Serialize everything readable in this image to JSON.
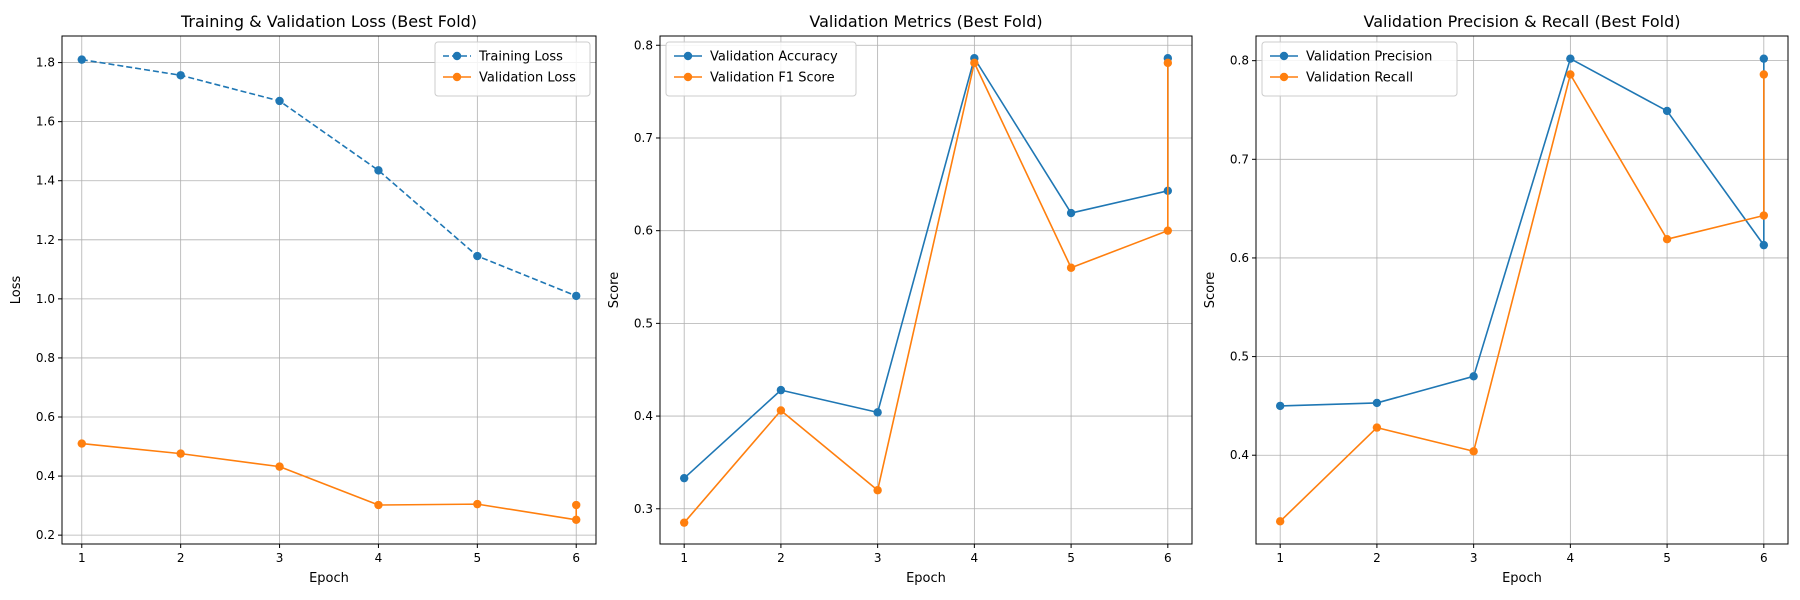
{
  "chart_data": [
    {
      "type": "line",
      "title": "Training & Validation Loss (Best Fold)",
      "xlabel": "Epoch",
      "ylabel": "Loss",
      "xlim": [
        0.8,
        6.2
      ],
      "ylim": [
        0.17,
        1.89
      ],
      "xticks": [
        1,
        2,
        3,
        4,
        5,
        6
      ],
      "yticks": [
        0.2,
        0.4,
        0.6,
        0.8,
        1.0,
        1.2,
        1.4,
        1.6,
        1.8
      ],
      "ytick_labels": [
        "0.2",
        "0.4",
        "0.6",
        "0.8",
        "1.0",
        "1.2",
        "1.4",
        "1.6",
        "1.8"
      ],
      "grid": true,
      "legend_position": "top-right",
      "series": [
        {
          "name": "Training Loss",
          "color": "#1f77b4",
          "dashed": true,
          "x": [
            1,
            2,
            3,
            4,
            5,
            6
          ],
          "y": [
            1.81,
            1.757,
            1.67,
            1.435,
            1.145,
            1.01
          ]
        },
        {
          "name": "Validation Loss",
          "color": "#ff7f0e",
          "dashed": false,
          "x": [
            1,
            2,
            3,
            4,
            5,
            6,
            6
          ],
          "y": [
            0.51,
            0.476,
            0.432,
            0.302,
            0.305,
            0.252,
            0.302
          ]
        }
      ]
    },
    {
      "type": "line",
      "title": "Validation Metrics (Best Fold)",
      "xlabel": "Epoch",
      "ylabel": "Score",
      "xlim": [
        0.75,
        6.25
      ],
      "ylim": [
        0.262,
        0.81
      ],
      "xticks": [
        1,
        2,
        3,
        4,
        5,
        6
      ],
      "yticks": [
        0.3,
        0.4,
        0.5,
        0.6,
        0.7,
        0.8
      ],
      "ytick_labels": [
        "0.3",
        "0.4",
        "0.5",
        "0.6",
        "0.7",
        "0.8"
      ],
      "grid": true,
      "legend_position": "top-left",
      "series": [
        {
          "name": "Validation Accuracy",
          "color": "#1f77b4",
          "dashed": false,
          "x": [
            1,
            2,
            3,
            4,
            5,
            6,
            6
          ],
          "y": [
            0.333,
            0.428,
            0.404,
            0.786,
            0.619,
            0.643,
            0.786
          ]
        },
        {
          "name": "Validation F1 Score",
          "color": "#ff7f0e",
          "dashed": false,
          "x": [
            1,
            2,
            3,
            4,
            5,
            6,
            6
          ],
          "y": [
            0.285,
            0.406,
            0.32,
            0.781,
            0.56,
            0.6,
            0.781
          ]
        }
      ]
    },
    {
      "type": "line",
      "title": "Validation Precision & Recall (Best Fold)",
      "xlabel": "Epoch",
      "ylabel": "Score",
      "xlim": [
        0.75,
        6.25
      ],
      "ylim": [
        0.31,
        0.825
      ],
      "xticks": [
        1,
        2,
        3,
        4,
        5,
        6
      ],
      "yticks": [
        0.4,
        0.5,
        0.6,
        0.7,
        0.8
      ],
      "ytick_labels": [
        "0.4",
        "0.5",
        "0.6",
        "0.7",
        "0.8"
      ],
      "grid": true,
      "legend_position": "top-left",
      "series": [
        {
          "name": "Validation Precision",
          "color": "#1f77b4",
          "dashed": false,
          "x": [
            1,
            2,
            3,
            4,
            5,
            6,
            6
          ],
          "y": [
            0.45,
            0.453,
            0.48,
            0.802,
            0.749,
            0.613,
            0.802
          ]
        },
        {
          "name": "Validation Recall",
          "color": "#ff7f0e",
          "dashed": false,
          "x": [
            1,
            2,
            3,
            4,
            5,
            6,
            6
          ],
          "y": [
            0.333,
            0.428,
            0.404,
            0.786,
            0.619,
            0.643,
            0.786
          ]
        }
      ]
    }
  ]
}
